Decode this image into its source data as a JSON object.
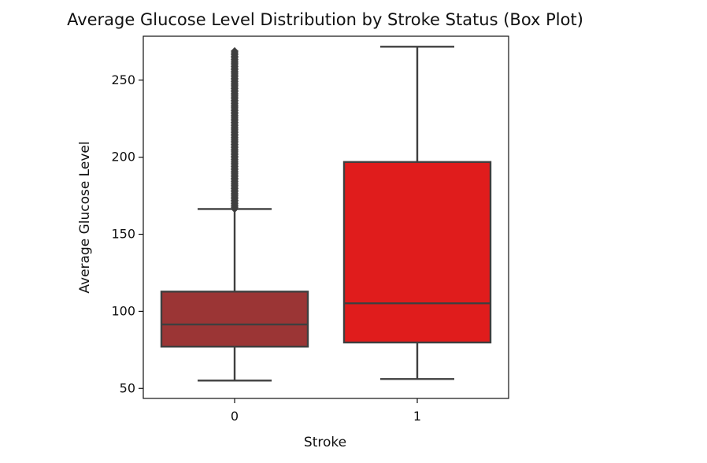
{
  "chart_data": {
    "type": "box",
    "title": "Average Glucose Level Distribution by Stroke Status (Box Plot)",
    "xlabel": "Stroke",
    "ylabel": "Average Glucose Level",
    "categories": [
      "0",
      "1"
    ],
    "ylim": [
      43.5,
      278.5
    ],
    "yticks": [
      50,
      100,
      150,
      200,
      250
    ],
    "grid": false,
    "series": [
      {
        "category": "0",
        "color": "#9b3535",
        "min": 55.1,
        "q1": 77.1,
        "median": 91.5,
        "q3": 112.8,
        "max": 166.4,
        "outlier_range": [
          166.5,
          268.8
        ]
      },
      {
        "category": "1",
        "color": "#e01c1c",
        "min": 56.1,
        "q1": 79.8,
        "median": 105.2,
        "q3": 196.9,
        "max": 271.7,
        "outlier_range": []
      }
    ]
  }
}
